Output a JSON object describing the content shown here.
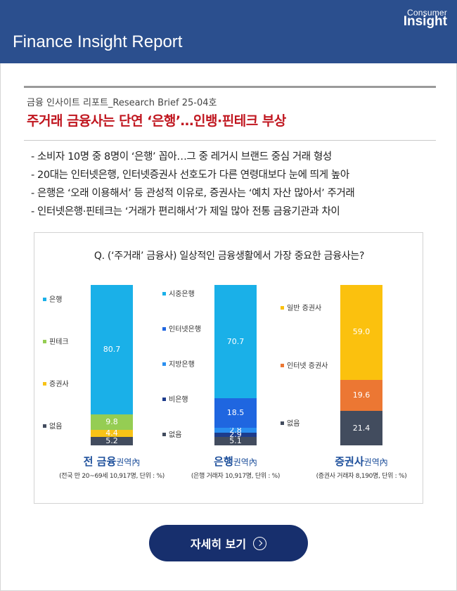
{
  "header": {
    "logo_line1": "Consumer",
    "logo_line2": "Insight",
    "title": "Finance Insight Report"
  },
  "article": {
    "series": "금융 인사이트 리포트_Research Brief 25-04호",
    "headline": "주거래 금융사는 단연 ‘은행’…인뱅·핀테크 부상",
    "bullets": [
      "- 소비자 10명 중 8명이 ‘은행’ 꼽아…그 중 레거시 브랜드 중심 거래 형성",
      "- 20대는 인터넷은행, 인터넷증권사 선호도가 다른 연령대보다 눈에 띄게 높아",
      "- 은행은 ‘오래 이용해서’ 등 관성적 이유로, 증권사는 ‘예치 자산 많아서’ 주거래",
      "- 인터넷은행·핀테크는 ‘거래가 편리해서’가 제일 많아 전통 금융기관과 차이"
    ]
  },
  "colors": {
    "header_bg": "#2b4f8e",
    "headline": "#c0161f",
    "group_title": "#1d4f9b",
    "cta_bg": "#172f6d"
  },
  "chart_data": {
    "type": "bar",
    "stacked": true,
    "title": "Q. (‘주거래’ 금융사) 일상적인 금융생활에서 가장 중요한 금융사는?",
    "groups": [
      {
        "title": "전 금융",
        "title_suffix": "권역內",
        "subtitle": "(전국 만 20~69세 10,917명, 단위 : %)",
        "segments": [
          {
            "name": "은행",
            "value": 80.7,
            "color": "#1ab0e8"
          },
          {
            "name": "핀테크",
            "value": 9.8,
            "color": "#95cd53"
          },
          {
            "name": "증권사",
            "value": 4.4,
            "color": "#f8c317"
          },
          {
            "name": "없음",
            "value": 5.2,
            "color": "#424c5e"
          }
        ]
      },
      {
        "title": "은행",
        "title_suffix": "권역內",
        "subtitle": "(은행 거래자 10,917명, 단위 : %)",
        "segments": [
          {
            "name": "시중은행",
            "value": 70.7,
            "color": "#1ab0e8"
          },
          {
            "name": "인터넷은행",
            "value": 18.5,
            "color": "#1f66e0"
          },
          {
            "name": "지방은행",
            "value": 2.8,
            "color": "#2a8ff0"
          },
          {
            "name": "비은행",
            "value": 2.9,
            "color": "#1d3c8c"
          },
          {
            "name": "없음",
            "value": 5.1,
            "color": "#424c5e"
          }
        ]
      },
      {
        "title": "증권사",
        "title_suffix": "권역內",
        "subtitle": "(증권사 거래자 8,190명, 단위 : %)",
        "segments": [
          {
            "name": "일반 증권사",
            "value": 59.0,
            "color": "#fbc10e"
          },
          {
            "name": "인터넷 증권사",
            "value": 19.6,
            "color": "#ec7733"
          },
          {
            "name": "없음",
            "value": 21.4,
            "color": "#424c5e"
          }
        ]
      }
    ]
  },
  "cta": {
    "label": "자세히 보기",
    "icon": "circle-arrow-right-icon"
  }
}
